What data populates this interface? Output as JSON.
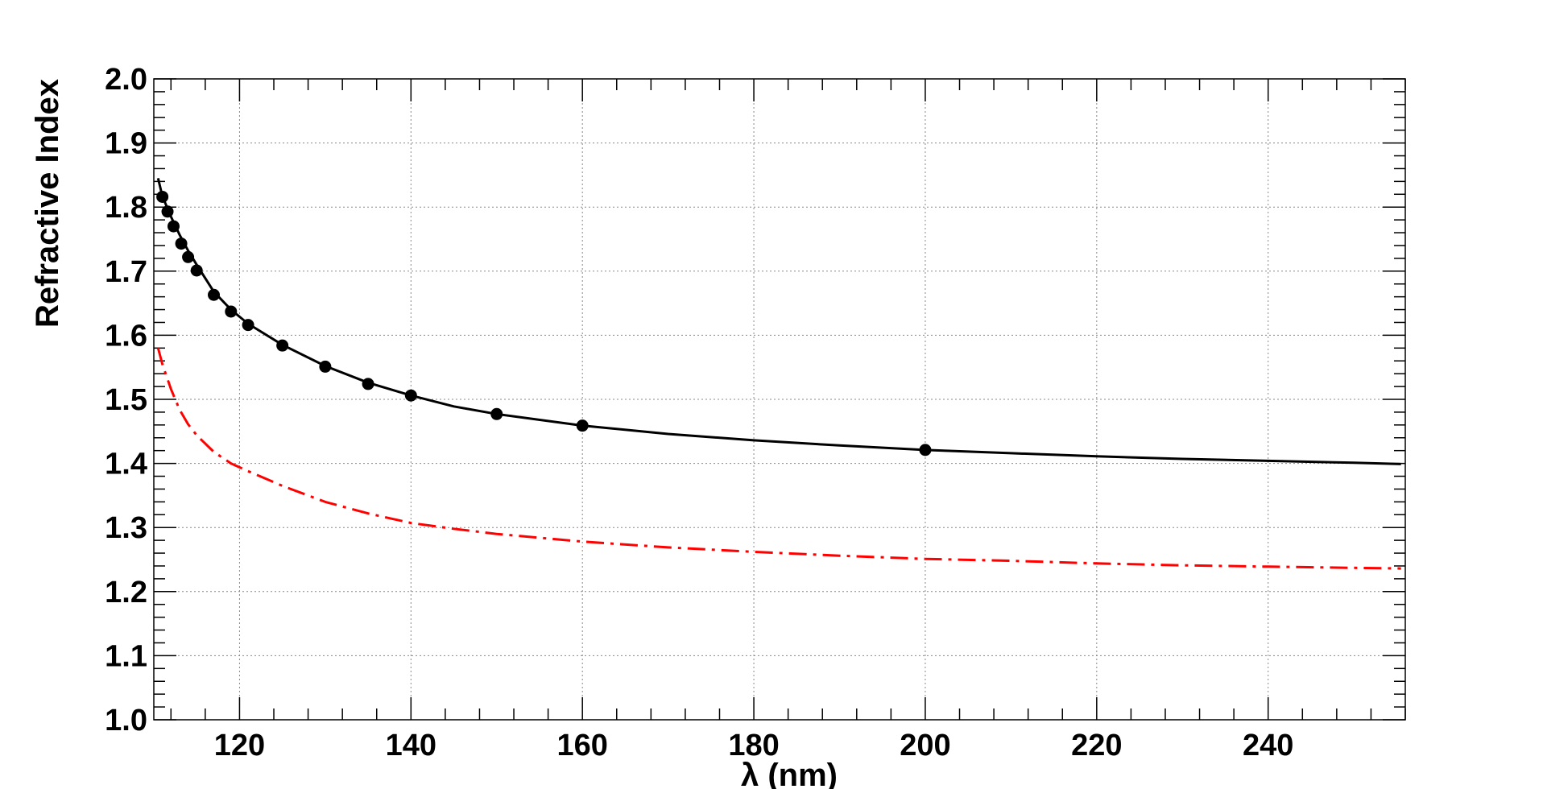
{
  "chart_data": {
    "type": "line",
    "title": "",
    "xlabel": "λ (nm)",
    "ylabel": "Refractive Index",
    "xlim": [
      110,
      256
    ],
    "ylim": [
      1.0,
      2.0
    ],
    "x_ticks": [
      120,
      140,
      160,
      180,
      200,
      220,
      240
    ],
    "x_tick_labels": [
      "120",
      "140",
      "160",
      "180",
      "200",
      "220",
      "240"
    ],
    "y_ticks": [
      1.0,
      1.1,
      1.2,
      1.3,
      1.4,
      1.5,
      1.6,
      1.7,
      1.8,
      1.9,
      2.0
    ],
    "y_tick_labels": [
      "1.0",
      "1.1",
      "1.2",
      "1.3",
      "1.4",
      "1.5",
      "1.6",
      "1.7",
      "1.8",
      "1.9",
      "2.0"
    ],
    "grid": true,
    "series": [
      {
        "style": "markers",
        "color": "#000000",
        "x": [
          111.0,
          111.6,
          112.3,
          113.2,
          114.0,
          115.0,
          117.0,
          119.0,
          121.0,
          125.0,
          130.0,
          135.0,
          140.0,
          150.0,
          160.0,
          200.0
        ],
        "y": [
          1.816,
          1.793,
          1.77,
          1.743,
          1.722,
          1.701,
          1.663,
          1.637,
          1.616,
          1.584,
          1.551,
          1.524,
          1.506,
          1.477,
          1.459,
          1.421
        ]
      },
      {
        "style": "solid",
        "color": "#000000",
        "x": [
          110.5,
          111.0,
          112.0,
          113.0,
          114.0,
          115.0,
          117.0,
          119.0,
          121.0,
          125.0,
          130.0,
          135.0,
          140.0,
          145.0,
          150.0,
          160.0,
          170.0,
          180.0,
          190.0,
          200.0,
          210.0,
          220.0,
          230.0,
          240.0,
          250.0,
          255.5
        ],
        "y": [
          1.845,
          1.817,
          1.785,
          1.757,
          1.732,
          1.71,
          1.668,
          1.64,
          1.618,
          1.585,
          1.552,
          1.526,
          1.506,
          1.489,
          1.477,
          1.459,
          1.446,
          1.436,
          1.428,
          1.421,
          1.416,
          1.411,
          1.407,
          1.404,
          1.401,
          1.399
        ]
      },
      {
        "style": "dash-dot",
        "color": "#ff0000",
        "x": [
          110.5,
          111.0,
          112.0,
          113.0,
          114.0,
          115.0,
          117.0,
          119.0,
          121.0,
          125.0,
          130.0,
          135.0,
          140.0,
          145.0,
          150.0,
          160.0,
          170.0,
          180.0,
          190.0,
          200.0,
          210.0,
          220.0,
          230.0,
          240.0,
          250.0,
          255.5
        ],
        "y": [
          1.58,
          1.555,
          1.516,
          1.484,
          1.461,
          1.444,
          1.418,
          1.4,
          1.388,
          1.365,
          1.34,
          1.322,
          1.307,
          1.298,
          1.29,
          1.278,
          1.269,
          1.262,
          1.256,
          1.251,
          1.248,
          1.244,
          1.241,
          1.239,
          1.237,
          1.236
        ]
      }
    ]
  }
}
